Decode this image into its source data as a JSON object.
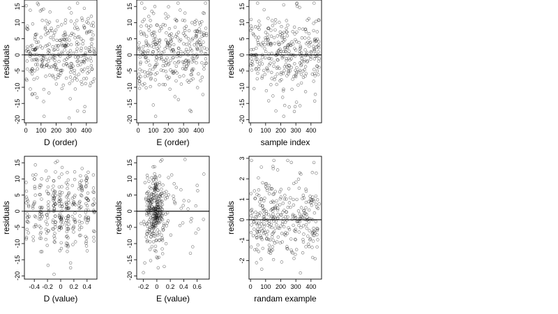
{
  "figure": {
    "background": "#ffffff",
    "point_color": "#000000",
    "point_opacity": 0.55
  },
  "chart_data": [
    {
      "id": "panel-d-order",
      "type": "scatter",
      "xlabel": "D (order)",
      "ylabel": "residuals",
      "xlim": [
        -10,
        470
      ],
      "ylim": [
        -21,
        17
      ],
      "xticks": [
        0,
        100,
        200,
        300,
        400
      ],
      "yticks": [
        -20,
        -15,
        -10,
        -5,
        0,
        5,
        10,
        15
      ],
      "hline": 0,
      "n_points": 320,
      "seed": 11,
      "x_dist": {
        "kind": "uniform",
        "min": 0,
        "max": 455
      },
      "y_dist": {
        "kind": "normal",
        "mean": 0.5,
        "sd": 6,
        "min": -19.5,
        "max": 16
      },
      "notable_points": [
        [
          120,
          -19
        ],
        [
          385,
          -17.5
        ],
        [
          390,
          -16
        ],
        [
          60,
          -12
        ],
        [
          300,
          13
        ]
      ]
    },
    {
      "id": "panel-e-order",
      "type": "scatter",
      "xlabel": "E (order)",
      "ylabel": "residuals",
      "xlim": [
        -10,
        470
      ],
      "ylim": [
        -21,
        17
      ],
      "xticks": [
        0,
        100,
        200,
        300,
        400
      ],
      "yticks": [
        -20,
        -15,
        -10,
        -5,
        0,
        5,
        10,
        15
      ],
      "hline": 0,
      "n_points": 320,
      "seed": 23,
      "x_dist": {
        "kind": "uniform",
        "min": 0,
        "max": 455
      },
      "y_dist": {
        "kind": "normal",
        "mean": 0.5,
        "sd": 6,
        "min": -19.5,
        "max": 16
      },
      "notable_points": [
        [
          115,
          -19
        ],
        [
          100,
          -15.5
        ],
        [
          350,
          -17.5
        ],
        [
          110,
          15
        ],
        [
          90,
          13.5
        ]
      ]
    },
    {
      "id": "panel-sample-index",
      "type": "scatter",
      "xlabel": "sample index",
      "ylabel": "residuals",
      "xlim": [
        -10,
        470
      ],
      "ylim": [
        -21,
        17
      ],
      "xticks": [
        0,
        100,
        200,
        300,
        400
      ],
      "yticks": [
        -20,
        -15,
        -10,
        -5,
        0,
        5,
        10,
        15
      ],
      "hline": 0,
      "n_points": 320,
      "seed": 37,
      "x_dist": {
        "kind": "uniform",
        "min": 0,
        "max": 455
      },
      "y_dist": {
        "kind": "normal",
        "mean": 0.5,
        "sd": 6,
        "min": -19.5,
        "max": 16
      },
      "notable_points": [
        [
          220,
          -19
        ],
        [
          290,
          -17.5
        ],
        [
          295,
          -16
        ],
        [
          220,
          15.5
        ],
        [
          90,
          14
        ]
      ]
    },
    {
      "id": "panel-d-value",
      "type": "scatter",
      "xlabel": "D (value)",
      "ylabel": "residuals",
      "xlim": [
        -0.55,
        0.55
      ],
      "ylim": [
        -21,
        17
      ],
      "xticks": [
        -0.4,
        -0.2,
        0.0,
        0.2,
        0.4
      ],
      "yticks": [
        -20,
        -15,
        -10,
        -5,
        0,
        5,
        10,
        15
      ],
      "hline": 0,
      "n_points": 320,
      "seed": 53,
      "x_dist": {
        "kind": "columns",
        "values": [
          -0.5,
          -0.4,
          -0.3,
          -0.2,
          -0.1,
          0.0,
          0.1,
          0.2,
          0.3,
          0.4,
          0.5
        ],
        "jitter": 0.025,
        "weights": [
          1,
          1,
          1.5,
          1.5,
          2.5,
          3,
          3,
          2,
          1.5,
          1.5,
          1
        ]
      },
      "y_dist": {
        "kind": "normal",
        "mean": 0.5,
        "sd": 6,
        "min": -19.5,
        "max": 16
      },
      "notable_points": [
        [
          0.15,
          -17.5
        ],
        [
          0.15,
          -16
        ],
        [
          -0.1,
          -19.5
        ],
        [
          -0.05,
          15.5
        ],
        [
          0.1,
          12
        ]
      ]
    },
    {
      "id": "panel-e-value",
      "type": "scatter",
      "xlabel": "E (value)",
      "ylabel": "residuals",
      "xlim": [
        -0.3,
        0.78
      ],
      "ylim": [
        -21,
        17
      ],
      "xticks": [
        -0.2,
        0.0,
        0.2,
        0.4,
        0.6
      ],
      "yticks": [
        -20,
        -15,
        -10,
        -5,
        0,
        5,
        10,
        15
      ],
      "hline": 0,
      "n_points": 320,
      "seed": 71,
      "x_dist": {
        "kind": "skew",
        "center": -0.03,
        "sd": 0.07,
        "tail_max": 0.7,
        "tail_fraction": 0.12
      },
      "y_dist": {
        "kind": "normal",
        "mean": 0.5,
        "sd": 6,
        "min": -19.5,
        "max": 16
      },
      "notable_points": [
        [
          -0.2,
          -19
        ],
        [
          -0.18,
          -16
        ],
        [
          0.02,
          -17.5
        ],
        [
          0.5,
          -13
        ],
        [
          0.7,
          11.5
        ],
        [
          0.6,
          8
        ]
      ]
    },
    {
      "id": "panel-random-example",
      "type": "scatter",
      "xlabel": "randam example",
      "ylabel": "residuals",
      "xlim": [
        -10,
        470
      ],
      "ylim": [
        -2.9,
        3.1
      ],
      "xticks": [
        0,
        100,
        200,
        300,
        400
      ],
      "yticks": [
        -2,
        -1,
        0,
        1,
        2,
        3
      ],
      "hline": 0,
      "n_points": 320,
      "seed": 97,
      "x_dist": {
        "kind": "uniform",
        "min": 0,
        "max": 455
      },
      "y_dist": {
        "kind": "normal",
        "mean": 0,
        "sd": 0.95,
        "min": -2.6,
        "max": 2.9
      },
      "notable_points": [
        [
          270,
          2.8
        ],
        [
          150,
          2.5
        ],
        [
          330,
          -2.6
        ],
        [
          40,
          -2.1
        ]
      ]
    }
  ]
}
